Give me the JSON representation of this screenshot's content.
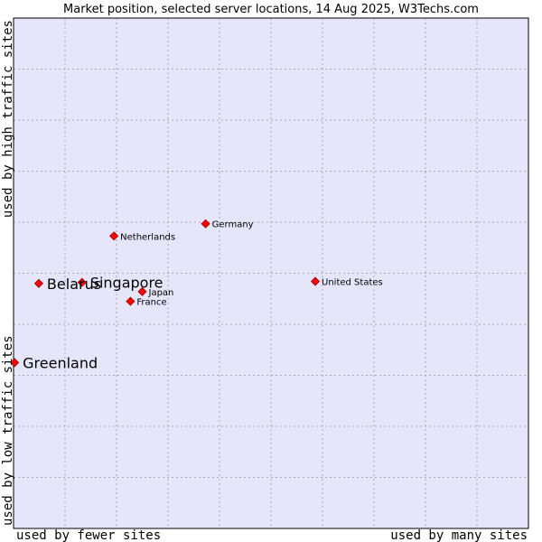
{
  "chart_data": {
    "type": "scatter",
    "title": "Market position, selected server locations, 14 Aug 2025, W3Techs.com",
    "x_axis": {
      "low_label": "used by fewer sites",
      "high_label": "used by many sites",
      "range": [
        0,
        10
      ]
    },
    "y_axis": {
      "low_label": "used by low traffic sites",
      "high_label": "used by high traffic sites",
      "range": [
        0,
        10
      ]
    },
    "grid": true,
    "colors": {
      "background": "#e6e6fa",
      "grid": "#aaaaaa",
      "point": "#ff0000",
      "point_outline": "#990000",
      "border": "#000000"
    },
    "points": [
      {
        "name": "Greenland",
        "x": 0.02,
        "y": 3.25,
        "label_size": "large"
      },
      {
        "name": "Belarus",
        "x": 0.49,
        "y": 4.8,
        "label_size": "large"
      },
      {
        "name": "Singapore",
        "x": 1.33,
        "y": 4.82,
        "label_size": "large"
      },
      {
        "name": "Netherlands",
        "x": 1.95,
        "y": 5.73,
        "label_size": "small"
      },
      {
        "name": "Germany",
        "x": 3.73,
        "y": 5.97,
        "label_size": "small"
      },
      {
        "name": "Japan",
        "x": 2.5,
        "y": 4.64,
        "label_size": "small"
      },
      {
        "name": "France",
        "x": 2.27,
        "y": 4.45,
        "label_size": "small"
      },
      {
        "name": "United States",
        "x": 5.86,
        "y": 4.84,
        "label_size": "small"
      }
    ]
  }
}
